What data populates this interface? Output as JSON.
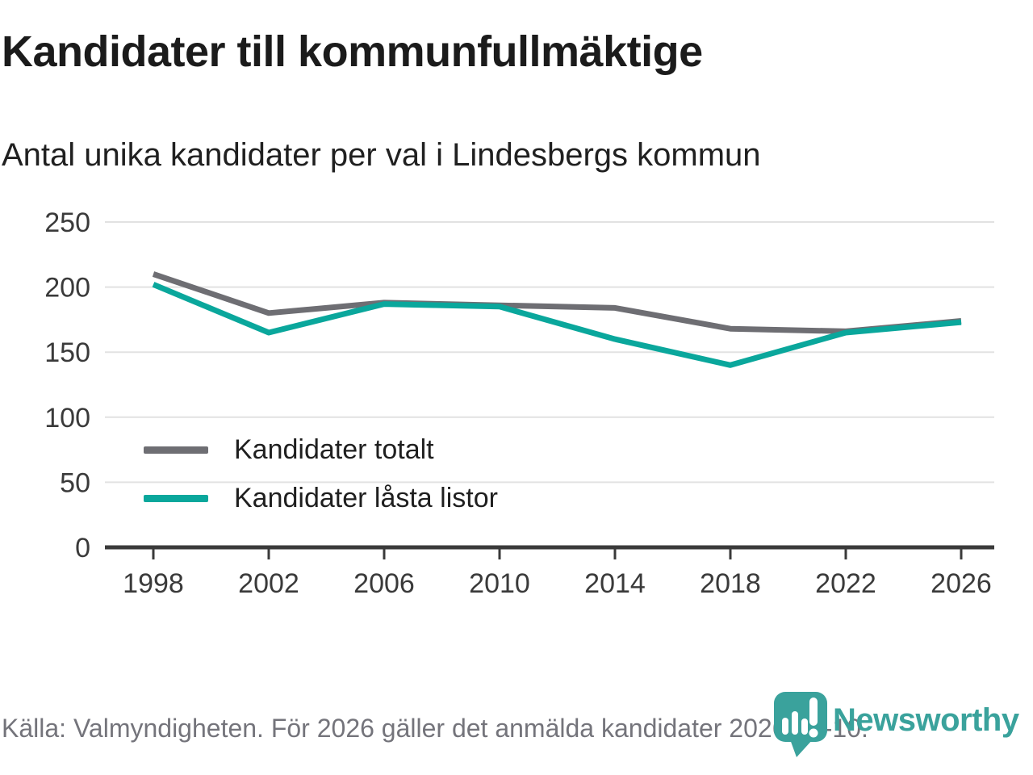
{
  "title": "Kandidater till kommunfullmäktige",
  "subtitle": "Antal unika kandidater per val i Lindesbergs kommun",
  "source_note": "Källa: Valmyndigheten. För 2026 gäller det anmälda kandidater 2026-04-10.",
  "brand": {
    "name": "Newsworthy",
    "icon": "newsworthy-pin-barchart-icon",
    "color": "#3aa29c"
  },
  "colors": {
    "grid": "#e2e2e2",
    "axis": "#3a3a3a",
    "title_text": "#1b1b1b",
    "muted_text": "#74747b",
    "series_total": "#6e6e73",
    "series_locked": "#0aa79c"
  },
  "chart_data": {
    "type": "line",
    "title": "Kandidater till kommunfullmäktige",
    "subtitle": "Antal unika kandidater per val i Lindesbergs kommun",
    "categories": [
      "1998",
      "2002",
      "2006",
      "2010",
      "2014",
      "2018",
      "2022",
      "2026"
    ],
    "series": [
      {
        "name": "Kandidater totalt",
        "color": "#6e6e73",
        "values": [
          210,
          180,
          188,
          186,
          184,
          168,
          166,
          174
        ]
      },
      {
        "name": "Kandidater låsta listor",
        "color": "#0aa79c",
        "values": [
          202,
          165,
          187,
          185,
          160,
          140,
          165,
          173
        ]
      }
    ],
    "xlabel": "",
    "ylabel": "",
    "ylim": [
      0,
      250
    ],
    "yticks": [
      0,
      50,
      100,
      150,
      200,
      250
    ],
    "grid": "horizontal-only",
    "legend_position": "inside-bottom-left"
  }
}
